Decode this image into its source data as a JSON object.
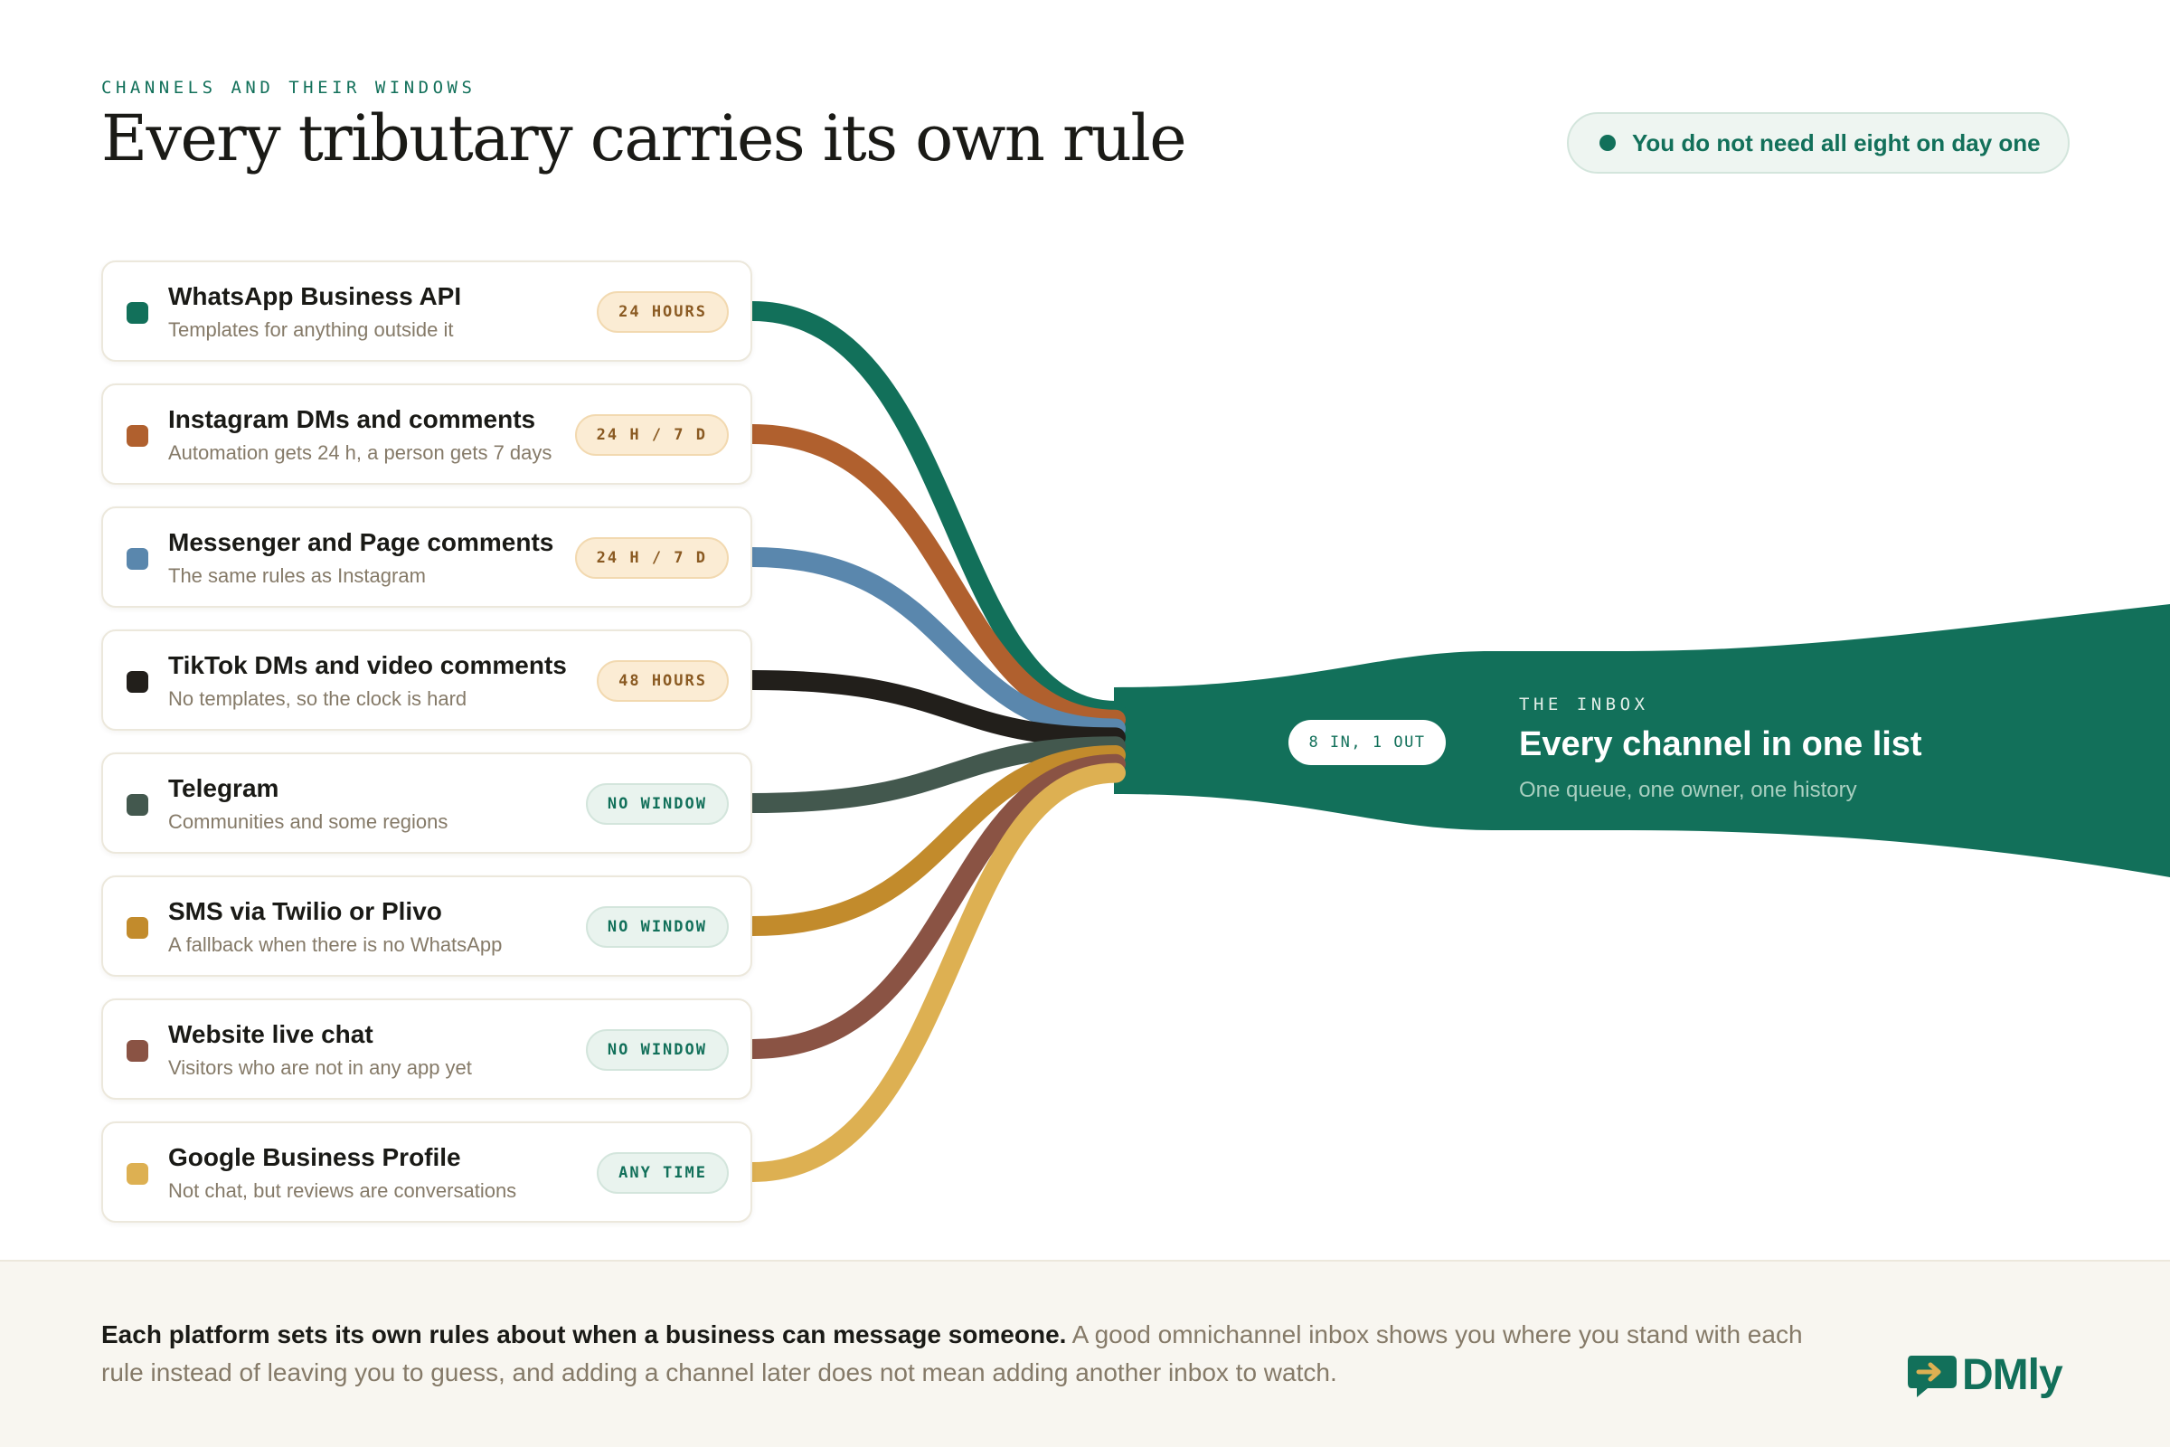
{
  "header": {
    "eyebrow": "CHANNELS AND THEIR WINDOWS",
    "title": "Every tributary carries its own rule",
    "pill_text": "You do not need all eight on day one"
  },
  "colors": {
    "brand": "#12705a",
    "warm_badge": "#fbecd4",
    "cool_badge": "#e9f3ee"
  },
  "channels": [
    {
      "name": "WhatsApp Business API",
      "desc": "Templates for anything outside it",
      "window": "24 HOURS",
      "badge_style": "warm",
      "color": "#12705a"
    },
    {
      "name": "Instagram DMs and comments",
      "desc": "Automation gets 24 h, a person gets 7 days",
      "window": "24 H / 7 D",
      "badge_style": "warm",
      "color": "#b0602e"
    },
    {
      "name": "Messenger and Page comments",
      "desc": "The same rules as Instagram",
      "window": "24 H / 7 D",
      "badge_style": "warm",
      "color": "#5a87ad"
    },
    {
      "name": "TikTok DMs and video comments",
      "desc": "No templates, so the clock is hard",
      "window": "48 HOURS",
      "badge_style": "warm",
      "color": "#221f1b"
    },
    {
      "name": "Telegram",
      "desc": "Communities and some regions",
      "window": "NO WINDOW",
      "badge_style": "cool",
      "color": "#43584e"
    },
    {
      "name": "SMS via Twilio or Plivo",
      "desc": "A fallback when there is no WhatsApp",
      "window": "NO WINDOW",
      "badge_style": "cool",
      "color": "#c28b2c"
    },
    {
      "name": "Website live chat",
      "desc": "Visitors who are not in any app yet",
      "window": "NO WINDOW",
      "badge_style": "cool",
      "color": "#8a5344"
    },
    {
      "name": "Google Business Profile",
      "desc": "Not chat, but reviews are conversations",
      "window": "ANY TIME",
      "badge_style": "cool",
      "color": "#ddb052"
    }
  ],
  "inbox": {
    "chip": "8 IN, 1 OUT",
    "eyebrow": "THE INBOX",
    "title": "Every channel in one list",
    "subtitle": "One queue, one owner, one history"
  },
  "footer": {
    "lead": "Each platform sets its own rules about when a business can message someone.",
    "body": " A good omnichannel inbox shows you where you stand with each rule instead of leaving you to guess, and adding a channel later does not mean adding another inbox to watch."
  },
  "brand": {
    "logo_icon": "chat-arrow-icon",
    "name": "DMly"
  }
}
